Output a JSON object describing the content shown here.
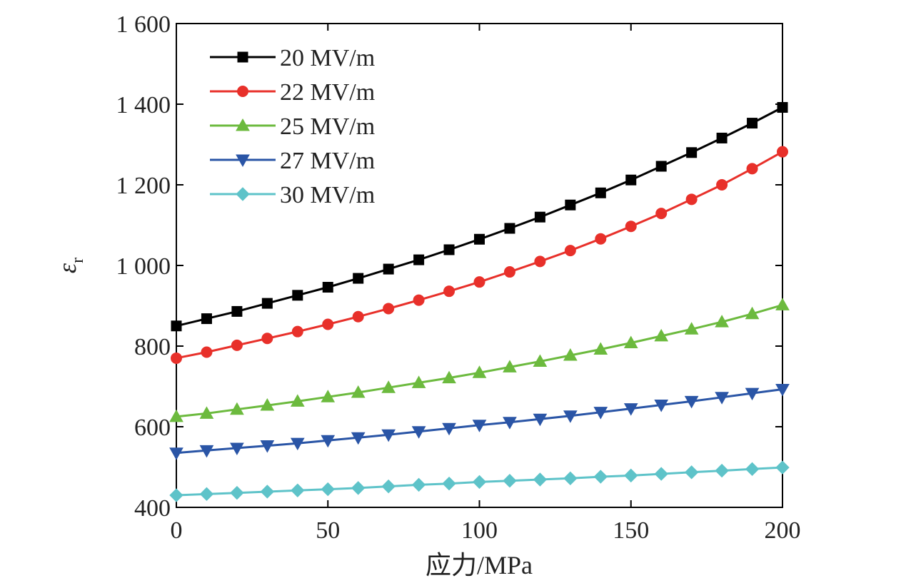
{
  "chart_data": {
    "type": "line",
    "xlabel": "应力/MPa",
    "ylabel": "ε",
    "ylabel_subscript": "r",
    "xlim": [
      0,
      200
    ],
    "ylim": [
      400,
      1600
    ],
    "xticks": [
      0,
      50,
      100,
      150,
      200
    ],
    "xtick_labels": [
      "0",
      "50",
      "100",
      "150",
      "200"
    ],
    "yticks": [
      400,
      600,
      800,
      1000,
      1200,
      1400,
      1600
    ],
    "ytick_labels": [
      "400",
      "600",
      "800",
      "1 000",
      "1 200",
      "1 400",
      "1 600"
    ],
    "grid": false,
    "legend_position": "top-left",
    "x": [
      0,
      10,
      20,
      30,
      40,
      50,
      60,
      70,
      80,
      90,
      100,
      110,
      120,
      130,
      140,
      150,
      160,
      170,
      180,
      190,
      200
    ],
    "series": [
      {
        "name": "20 MV/m",
        "color": "#000000",
        "marker": "square",
        "values": [
          850,
          868,
          886,
          906,
          926,
          946,
          968,
          991,
          1014,
          1039,
          1065,
          1092,
          1120,
          1150,
          1180,
          1212,
          1246,
          1280,
          1316,
          1353,
          1392
        ]
      },
      {
        "name": "22 MV/m",
        "color": "#e8302a",
        "marker": "circle",
        "values": [
          770,
          785,
          802,
          819,
          836,
          854,
          873,
          893,
          914,
          936,
          959,
          984,
          1010,
          1037,
          1066,
          1097,
          1129,
          1164,
          1200,
          1240,
          1282
        ]
      },
      {
        "name": "25 MV/m",
        "color": "#6cba3e",
        "marker": "triangle-up",
        "values": [
          625,
          633,
          643,
          653,
          663,
          674,
          685,
          697,
          709,
          721,
          734,
          748,
          762,
          777,
          792,
          808,
          825,
          842,
          860,
          880,
          902
        ]
      },
      {
        "name": "27 MV/m",
        "color": "#2a55a6",
        "marker": "triangle-down",
        "values": [
          535,
          541,
          547,
          553,
          559,
          566,
          573,
          580,
          588,
          596,
          604,
          611,
          619,
          627,
          636,
          645,
          654,
          663,
          673,
          683,
          693
        ]
      },
      {
        "name": "30 MV/m",
        "color": "#5ec3c9",
        "marker": "diamond",
        "values": [
          430,
          433,
          436,
          439,
          442,
          445,
          448,
          452,
          456,
          459,
          463,
          466,
          469,
          472,
          476,
          479,
          483,
          487,
          491,
          495,
          499
        ]
      }
    ]
  }
}
